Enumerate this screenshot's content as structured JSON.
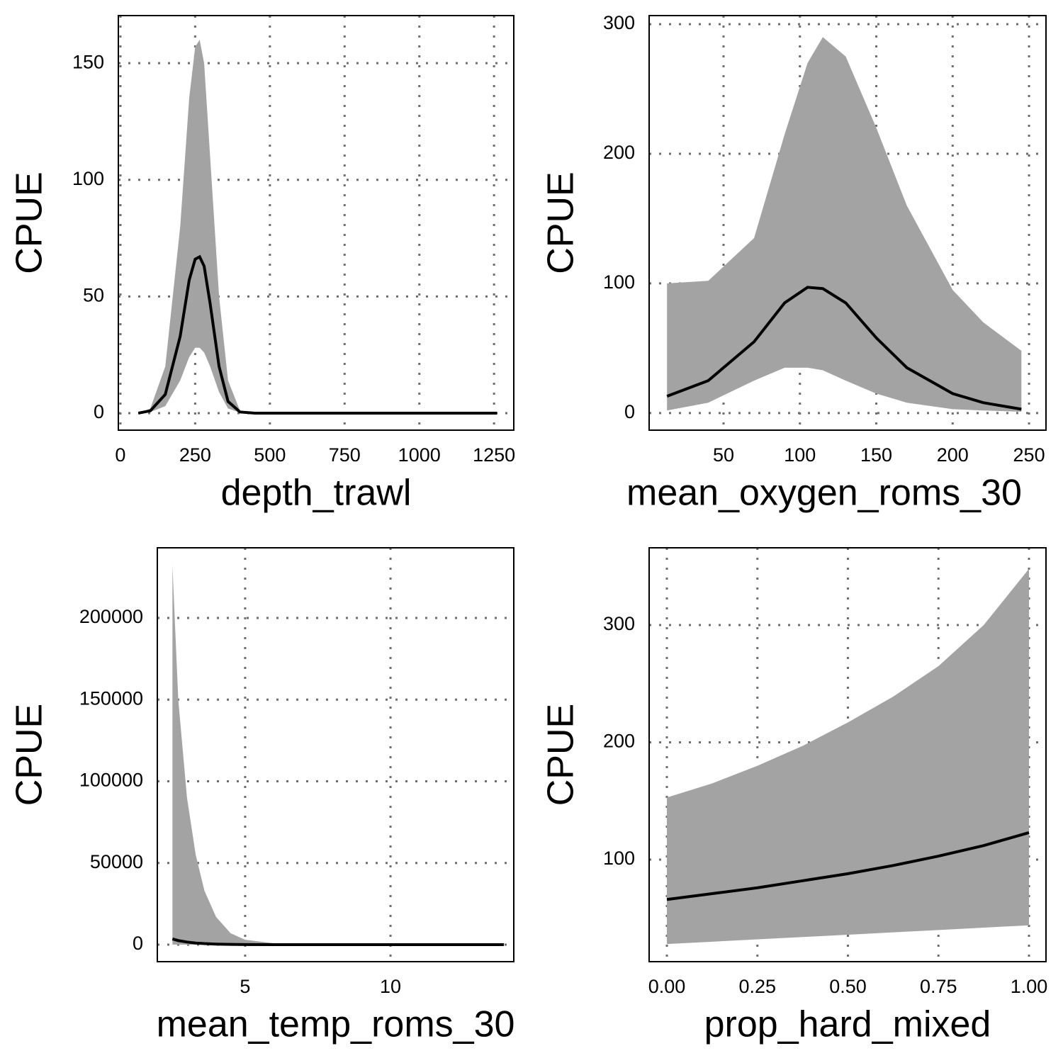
{
  "chart_data": [
    {
      "type": "line",
      "x_label": "depth_trawl",
      "y_label": "CPUE",
      "x": [
        60,
        100,
        150,
        200,
        230,
        250,
        265,
        280,
        300,
        330,
        360,
        400,
        450,
        500,
        750,
        1000,
        1260
      ],
      "values": [
        0,
        1,
        8,
        33,
        57,
        66,
        67,
        63,
        47,
        20,
        5,
        0.5,
        0,
        0,
        0,
        0,
        0
      ],
      "upper": [
        0,
        2,
        20,
        80,
        135,
        157,
        160,
        150,
        110,
        50,
        14,
        1,
        0,
        0,
        0,
        0,
        0
      ],
      "lower": [
        0,
        0.5,
        3,
        14,
        24,
        28,
        28,
        26,
        20,
        9,
        2,
        0.2,
        0,
        0,
        0,
        0,
        0
      ],
      "color": "#000000",
      "band_color": "#a3a3a3",
      "xlim": [
        -7,
        1316
      ],
      "ylim": [
        -7.3,
        170.4
      ],
      "xticks": [
        0,
        250,
        500,
        750,
        1000,
        1250
      ],
      "yticks": [
        0,
        50,
        100,
        150
      ],
      "grid": true
    },
    {
      "type": "line",
      "x_label": "mean_oxygen_roms_30",
      "y_label": "CPUE",
      "x": [
        13,
        40,
        70,
        90,
        105,
        115,
        130,
        150,
        170,
        200,
        220,
        245
      ],
      "values": [
        13,
        25,
        55,
        85,
        97,
        96,
        85,
        58,
        35,
        15,
        8,
        3
      ],
      "upper": [
        100,
        102,
        135,
        215,
        270,
        290,
        275,
        220,
        160,
        95,
        70,
        48
      ],
      "lower": [
        2,
        8,
        25,
        35,
        35,
        33,
        25,
        15,
        8,
        3,
        2,
        1
      ],
      "color": "#000000",
      "band_color": "#a3a3a3",
      "xlim": [
        1.3,
        261.1
      ],
      "ylim": [
        -13.2,
        306.6
      ],
      "xticks": [
        50,
        100,
        150,
        200,
        250
      ],
      "yticks": [
        0,
        100,
        200,
        300
      ],
      "grid": true
    },
    {
      "type": "line",
      "x_label": "mean_temp_roms_30",
      "y_label": "CPUE",
      "x": [
        2.5,
        2.7,
        3,
        3.3,
        3.6,
        4,
        4.5,
        5,
        6,
        8,
        10,
        12,
        13.9
      ],
      "values": [
        3500,
        2500,
        1600,
        1000,
        650,
        350,
        150,
        70,
        20,
        3,
        1,
        0,
        0
      ],
      "upper": [
        232000,
        150000,
        90000,
        55000,
        33000,
        17000,
        7000,
        3000,
        800,
        100,
        20,
        5,
        2
      ],
      "lower": [
        60,
        40,
        25,
        15,
        10,
        5,
        2,
        1,
        0,
        0,
        0,
        0,
        0
      ],
      "color": "#000000",
      "band_color": "#a3a3a3",
      "xlim": [
        1.98,
        14.24
      ],
      "ylim": [
        -10412,
        242950
      ],
      "xticks": [
        5,
        10
      ],
      "yticks": [
        0,
        50000,
        100000,
        150000,
        200000
      ],
      "grid": true
    },
    {
      "type": "line",
      "x_label": "prop_hard_mixed",
      "y_label": "CPUE",
      "x": [
        0,
        0.125,
        0.25,
        0.375,
        0.5,
        0.625,
        0.75,
        0.875,
        1
      ],
      "values": [
        66,
        71,
        76,
        82,
        88,
        95,
        103,
        112,
        123
      ],
      "upper": [
        153,
        165,
        180,
        197,
        217,
        239,
        265,
        300,
        348
      ],
      "lower": [
        28,
        30,
        32,
        34,
        36,
        38,
        40,
        42,
        44
      ],
      "color": "#000000",
      "band_color": "#a3a3a3",
      "xlim": [
        -0.049,
        1.047
      ],
      "ylim": [
        13.0,
        365.9
      ],
      "xticks": [
        {
          "value": 0,
          "label": "0.00"
        },
        {
          "value": 0.25,
          "label": "0.25"
        },
        {
          "value": 0.5,
          "label": "0.50"
        },
        {
          "value": 0.75,
          "label": "0.75"
        },
        {
          "value": 1,
          "label": "1.00"
        }
      ],
      "yticks": [
        100,
        200,
        300
      ],
      "grid": true
    }
  ]
}
